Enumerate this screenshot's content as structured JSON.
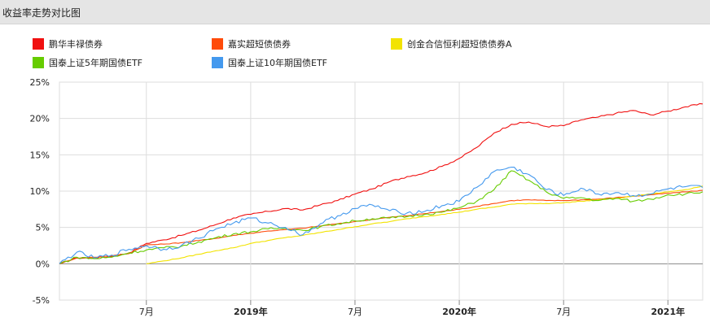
{
  "header": {
    "title": "收益率走势对比图"
  },
  "colors": {
    "series": [
      "#f01010",
      "#ff4b0a",
      "#f2e300",
      "#66cc00",
      "#4499ee"
    ],
    "grid": "#dddddd",
    "zero_line": "#888888",
    "axis": "#888888"
  },
  "chart_data": {
    "type": "line",
    "title": "收益率走势对比图",
    "xlabel": "",
    "ylabel": "",
    "ylim": [
      -5,
      25
    ],
    "yticks": [
      "25%",
      "20%",
      "15%",
      "10%",
      "5%",
      "0%",
      "-5%"
    ],
    "x_range": [
      "2018-02",
      "2021-03"
    ],
    "x_ticks": [
      {
        "label": "7月",
        "date": "2018-07",
        "bold": false
      },
      {
        "label": "2019年",
        "date": "2019-01",
        "bold": true
      },
      {
        "label": "7月",
        "date": "2019-07",
        "bold": false
      },
      {
        "label": "2020年",
        "date": "2020-01",
        "bold": true
      },
      {
        "label": "7月",
        "date": "2020-07",
        "bold": false
      },
      {
        "label": "2021年",
        "date": "2021-01",
        "bold": true
      }
    ],
    "grid": true,
    "legend_position": "top",
    "series": [
      {
        "name": "鹏华丰禄债券",
        "points": [
          [
            "2018-02",
            0.0
          ],
          [
            "2018-03",
            0.8
          ],
          [
            "2018-04",
            0.8
          ],
          [
            "2018-05",
            1.0
          ],
          [
            "2018-06",
            1.5
          ],
          [
            "2018-07",
            2.8
          ],
          [
            "2018-08",
            3.3
          ],
          [
            "2018-09",
            3.9
          ],
          [
            "2018-10",
            4.6
          ],
          [
            "2018-11",
            5.4
          ],
          [
            "2018-12",
            6.3
          ],
          [
            "2019-01",
            6.8
          ],
          [
            "2019-02",
            7.2
          ],
          [
            "2019-03",
            7.6
          ],
          [
            "2019-04",
            7.4
          ],
          [
            "2019-05",
            8.1
          ],
          [
            "2019-06",
            8.7
          ],
          [
            "2019-07",
            9.6
          ],
          [
            "2019-08",
            10.3
          ],
          [
            "2019-09",
            11.3
          ],
          [
            "2019-10",
            12.0
          ],
          [
            "2019-11",
            12.5
          ],
          [
            "2019-12",
            13.4
          ],
          [
            "2020-01",
            14.5
          ],
          [
            "2020-02",
            16.0
          ],
          [
            "2020-03",
            18.0
          ],
          [
            "2020-04",
            19.2
          ],
          [
            "2020-05",
            19.5
          ],
          [
            "2020-06",
            18.9
          ],
          [
            "2020-07",
            19.0
          ],
          [
            "2020-08",
            19.8
          ],
          [
            "2020-09",
            20.2
          ],
          [
            "2020-10",
            20.7
          ],
          [
            "2020-11",
            21.1
          ],
          [
            "2020-12",
            20.5
          ],
          [
            "2021-01",
            21.0
          ],
          [
            "2021-02",
            21.6
          ],
          [
            "2021-03",
            22.0
          ]
        ]
      },
      {
        "name": "嘉实超短债债券",
        "points": [
          [
            "2018-02",
            0.0
          ],
          [
            "2018-03",
            0.8
          ],
          [
            "2018-04",
            0.9
          ],
          [
            "2018-05",
            1.1
          ],
          [
            "2018-06",
            1.4
          ],
          [
            "2018-07",
            2.6
          ],
          [
            "2018-08",
            2.7
          ],
          [
            "2018-09",
            2.9
          ],
          [
            "2018-10",
            3.2
          ],
          [
            "2018-11",
            3.5
          ],
          [
            "2018-12",
            3.9
          ],
          [
            "2019-01",
            4.2
          ],
          [
            "2019-02",
            4.5
          ],
          [
            "2019-03",
            4.7
          ],
          [
            "2019-04",
            4.9
          ],
          [
            "2019-05",
            5.2
          ],
          [
            "2019-06",
            5.5
          ],
          [
            "2019-07",
            5.8
          ],
          [
            "2019-08",
            6.1
          ],
          [
            "2019-09",
            6.4
          ],
          [
            "2019-10",
            6.6
          ],
          [
            "2019-11",
            6.9
          ],
          [
            "2019-12",
            7.2
          ],
          [
            "2020-01",
            7.5
          ],
          [
            "2020-02",
            7.9
          ],
          [
            "2020-03",
            8.3
          ],
          [
            "2020-04",
            8.7
          ],
          [
            "2020-05",
            8.8
          ],
          [
            "2020-06",
            8.7
          ],
          [
            "2020-07",
            8.7
          ],
          [
            "2020-08",
            8.8
          ],
          [
            "2020-09",
            8.9
          ],
          [
            "2020-10",
            9.1
          ],
          [
            "2020-11",
            9.3
          ],
          [
            "2020-12",
            9.5
          ],
          [
            "2021-01",
            9.7
          ],
          [
            "2021-02",
            9.9
          ],
          [
            "2021-03",
            10.1
          ]
        ]
      },
      {
        "name": "创金合信恒利超短债债券A",
        "points": [
          [
            "2018-07",
            0.0
          ],
          [
            "2018-08",
            0.4
          ],
          [
            "2018-09",
            0.8
          ],
          [
            "2018-10",
            1.3
          ],
          [
            "2018-11",
            1.8
          ],
          [
            "2018-12",
            2.2
          ],
          [
            "2019-01",
            2.8
          ],
          [
            "2019-02",
            3.2
          ],
          [
            "2019-03",
            3.6
          ],
          [
            "2019-04",
            3.9
          ],
          [
            "2019-05",
            4.3
          ],
          [
            "2019-06",
            4.7
          ],
          [
            "2019-07",
            5.1
          ],
          [
            "2019-08",
            5.5
          ],
          [
            "2019-09",
            5.8
          ],
          [
            "2019-10",
            6.2
          ],
          [
            "2019-11",
            6.5
          ],
          [
            "2019-12",
            6.8
          ],
          [
            "2020-01",
            7.1
          ],
          [
            "2020-02",
            7.5
          ],
          [
            "2020-03",
            7.8
          ],
          [
            "2020-04",
            8.2
          ],
          [
            "2020-05",
            8.3
          ],
          [
            "2020-06",
            8.3
          ],
          [
            "2020-07",
            8.4
          ],
          [
            "2020-08",
            8.6
          ],
          [
            "2020-09",
            8.8
          ],
          [
            "2020-10",
            9.0
          ],
          [
            "2020-11",
            9.3
          ],
          [
            "2020-12",
            9.6
          ],
          [
            "2021-01",
            9.9
          ],
          [
            "2021-02",
            10.2
          ],
          [
            "2021-03",
            10.7
          ]
        ]
      },
      {
        "name": "国泰上证5年期国债ETF",
        "points": [
          [
            "2018-02",
            0.0
          ],
          [
            "2018-03",
            0.9
          ],
          [
            "2018-04",
            0.7
          ],
          [
            "2018-05",
            0.9
          ],
          [
            "2018-06",
            1.5
          ],
          [
            "2018-07",
            1.9
          ],
          [
            "2018-08",
            2.2
          ],
          [
            "2018-09",
            2.4
          ],
          [
            "2018-10",
            3.0
          ],
          [
            "2018-11",
            3.6
          ],
          [
            "2018-12",
            4.1
          ],
          [
            "2019-01",
            4.4
          ],
          [
            "2019-02",
            4.8
          ],
          [
            "2019-03",
            4.9
          ],
          [
            "2019-04",
            4.6
          ],
          [
            "2019-05",
            5.1
          ],
          [
            "2019-06",
            5.5
          ],
          [
            "2019-07",
            5.9
          ],
          [
            "2019-08",
            6.2
          ],
          [
            "2019-09",
            6.3
          ],
          [
            "2019-10",
            6.5
          ],
          [
            "2019-11",
            6.8
          ],
          [
            "2019-12",
            7.1
          ],
          [
            "2020-01",
            7.7
          ],
          [
            "2020-02",
            8.6
          ],
          [
            "2020-03",
            10.2
          ],
          [
            "2020-04",
            12.8
          ],
          [
            "2020-05",
            11.5
          ],
          [
            "2020-06",
            9.9
          ],
          [
            "2020-07",
            9.0
          ],
          [
            "2020-08",
            9.1
          ],
          [
            "2020-09",
            8.7
          ],
          [
            "2020-10",
            9.0
          ],
          [
            "2020-11",
            8.6
          ],
          [
            "2020-12",
            8.9
          ],
          [
            "2021-01",
            9.5
          ],
          [
            "2021-02",
            9.6
          ],
          [
            "2021-03",
            9.9
          ]
        ]
      },
      {
        "name": "国泰上证10年期国债ETF",
        "points": [
          [
            "2018-02",
            0.0
          ],
          [
            "2018-03",
            1.6
          ],
          [
            "2018-04",
            0.8
          ],
          [
            "2018-05",
            1.2
          ],
          [
            "2018-06",
            2.0
          ],
          [
            "2018-07",
            2.5
          ],
          [
            "2018-08",
            2.0
          ],
          [
            "2018-09",
            2.5
          ],
          [
            "2018-10",
            3.5
          ],
          [
            "2018-11",
            4.8
          ],
          [
            "2018-12",
            5.6
          ],
          [
            "2019-01",
            6.3
          ],
          [
            "2019-02",
            5.6
          ],
          [
            "2019-03",
            5.0
          ],
          [
            "2019-04",
            4.0
          ],
          [
            "2019-05",
            5.5
          ],
          [
            "2019-06",
            6.6
          ],
          [
            "2019-07",
            7.6
          ],
          [
            "2019-08",
            8.1
          ],
          [
            "2019-09",
            7.3
          ],
          [
            "2019-10",
            7.0
          ],
          [
            "2019-11",
            7.2
          ],
          [
            "2019-12",
            8.0
          ],
          [
            "2020-01",
            8.6
          ],
          [
            "2020-02",
            10.5
          ],
          [
            "2020-03",
            12.7
          ],
          [
            "2020-04",
            13.3
          ],
          [
            "2020-05",
            12.3
          ],
          [
            "2020-06",
            10.2
          ],
          [
            "2020-07",
            9.4
          ],
          [
            "2020-08",
            10.4
          ],
          [
            "2020-09",
            9.6
          ],
          [
            "2020-10",
            9.8
          ],
          [
            "2020-11",
            9.4
          ],
          [
            "2020-12",
            9.6
          ],
          [
            "2021-01",
            10.3
          ],
          [
            "2021-02",
            10.6
          ],
          [
            "2021-03",
            10.5
          ]
        ]
      }
    ]
  }
}
